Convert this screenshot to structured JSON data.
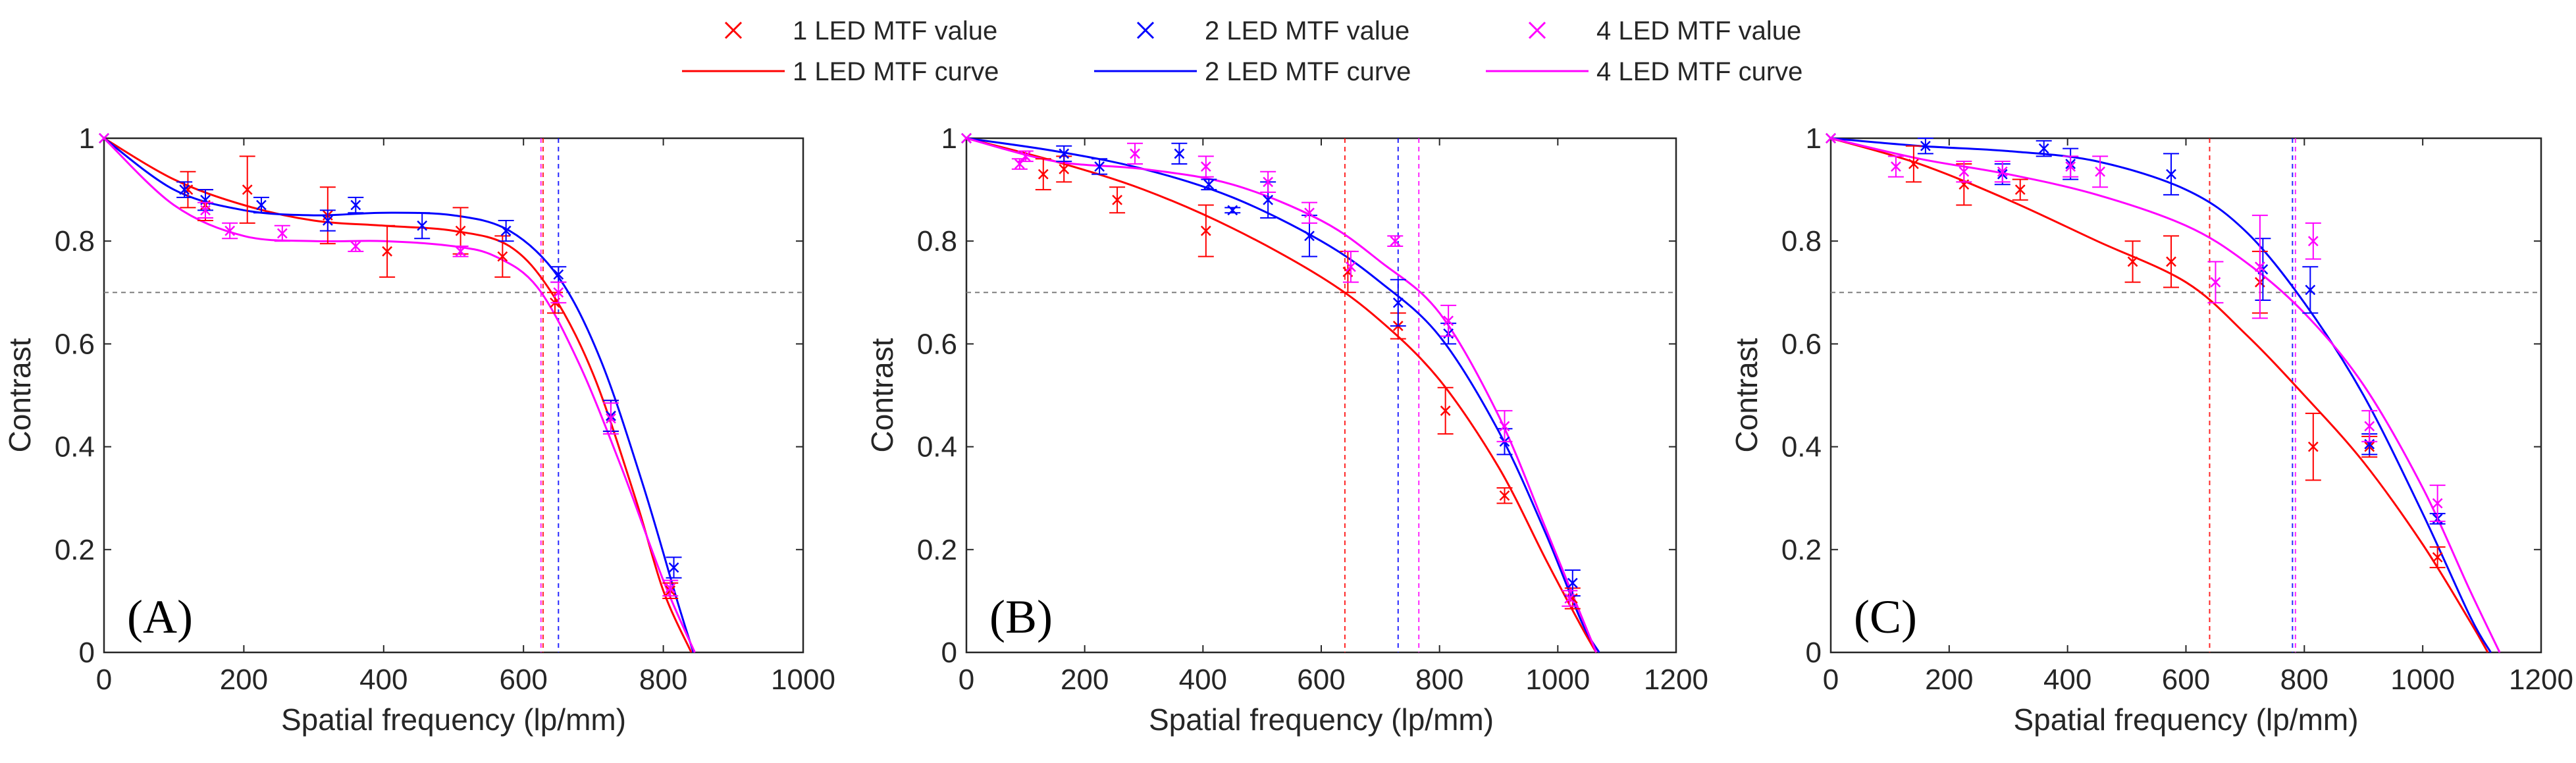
{
  "colors": {
    "led1": "#ff0000",
    "led2": "#0000ff",
    "led4": "#ff00ff",
    "threshold": "#7f7f7f",
    "axis": "#262626"
  },
  "legend": {
    "items": [
      {
        "key": "led1",
        "kind": "marker",
        "label": "1 LED MTF value"
      },
      {
        "key": "led1",
        "kind": "line",
        "label": "1 LED MTF curve"
      },
      {
        "key": "led2",
        "kind": "marker",
        "label": "2 LED MTF value"
      },
      {
        "key": "led2",
        "kind": "line",
        "label": "2 LED MTF curve"
      },
      {
        "key": "led4",
        "kind": "marker",
        "label": "4 LED MTF value"
      },
      {
        "key": "led4",
        "kind": "line",
        "label": "4 LED MTF curve"
      }
    ]
  },
  "chart_data": [
    {
      "type": "scatter",
      "panel": "(A)",
      "xlabel": "Spatial frequency (lp/mm)",
      "ylabel": "Contrast",
      "xlim": [
        0,
        1000
      ],
      "ylim": [
        0,
        1
      ],
      "xticks": [
        "0",
        "200",
        "400",
        "600",
        "800",
        "1000"
      ],
      "yticks": [
        "0",
        "0.2",
        "0.4",
        "0.6",
        "0.8",
        "1"
      ],
      "threshold": 0.7,
      "series": [
        {
          "name": "1 LED",
          "key": "led1",
          "cutoff": 628,
          "x": [
            0,
            120,
            145,
            205,
            320,
            405,
            510,
            570,
            645,
            725,
            810
          ],
          "y": [
            1,
            0.9,
            0.87,
            0.9,
            0.85,
            0.78,
            0.82,
            0.77,
            0.68,
            0.46,
            0.12
          ],
          "err": [
            0,
            0.035,
            0.03,
            0.065,
            0.055,
            0.05,
            0.045,
            0.04,
            0.02,
            0.03,
            0.015
          ],
          "curve_x": [
            0,
            100,
            200,
            300,
            400,
            500,
            580,
            640,
            700,
            760,
            800,
            840
          ],
          "curve_y": [
            1,
            0.92,
            0.87,
            0.84,
            0.83,
            0.82,
            0.79,
            0.7,
            0.54,
            0.3,
            0.12,
            0.0
          ]
        },
        {
          "name": "2 LED",
          "key": "led2",
          "cutoff": 650,
          "x": [
            0,
            115,
            145,
            225,
            320,
            360,
            455,
            575,
            650,
            725,
            815
          ],
          "y": [
            1,
            0.9,
            0.88,
            0.87,
            0.84,
            0.87,
            0.83,
            0.82,
            0.735,
            0.46,
            0.165
          ],
          "err": [
            0,
            0.015,
            0.02,
            0.015,
            0.02,
            0.015,
            0.025,
            0.02,
            0.015,
            0.03,
            0.02
          ],
          "curve_x": [
            0,
            100,
            200,
            300,
            400,
            500,
            580,
            650,
            710,
            770,
            820,
            843
          ],
          "curve_y": [
            1,
            0.9,
            0.86,
            0.85,
            0.855,
            0.85,
            0.82,
            0.73,
            0.57,
            0.33,
            0.1,
            0.0
          ]
        },
        {
          "name": "4 LED",
          "key": "led4",
          "cutoff": 625,
          "x": [
            0,
            145,
            180,
            255,
            360,
            510,
            650,
            725,
            810
          ],
          "y": [
            1,
            0.86,
            0.82,
            0.815,
            0.79,
            0.78,
            0.7,
            0.455,
            0.125
          ],
          "err": [
            0,
            0.015,
            0.015,
            0.015,
            0.01,
            0.01,
            0.02,
            0.03,
            0.015
          ],
          "curve_x": [
            0,
            100,
            200,
            300,
            400,
            500,
            560,
            620,
            680,
            740,
            800,
            845
          ],
          "curve_y": [
            1,
            0.87,
            0.81,
            0.8,
            0.8,
            0.79,
            0.77,
            0.71,
            0.56,
            0.36,
            0.14,
            0.0
          ]
        }
      ]
    },
    {
      "type": "scatter",
      "panel": "(B)",
      "xlabel": "Spatial frequency (lp/mm)",
      "ylabel": "Contrast",
      "xlim": [
        0,
        1200
      ],
      "ylim": [
        0,
        1
      ],
      "xticks": [
        "0",
        "200",
        "400",
        "600",
        "800",
        "1000",
        "1200"
      ],
      "yticks": [
        "0",
        "0.2",
        "0.4",
        "0.6",
        "0.8",
        "1"
      ],
      "threshold": 0.7,
      "series": [
        {
          "name": "1 LED",
          "key": "led1",
          "cutoff": 640,
          "x": [
            0,
            130,
            165,
            255,
            405,
            645,
            730,
            810,
            910,
            1025
          ],
          "y": [
            1,
            0.93,
            0.94,
            0.88,
            0.82,
            0.74,
            0.635,
            0.47,
            0.305,
            0.105
          ],
          "err": [
            0,
            0.03,
            0.025,
            0.025,
            0.05,
            0.04,
            0.025,
            0.045,
            0.015,
            0.02
          ],
          "curve_x": [
            0,
            150,
            300,
            450,
            600,
            700,
            800,
            900,
            980,
            1040,
            1065
          ],
          "curve_y": [
            1,
            0.955,
            0.9,
            0.825,
            0.73,
            0.645,
            0.53,
            0.36,
            0.18,
            0.05,
            0.0
          ]
        },
        {
          "name": "2 LED",
          "key": "led2",
          "cutoff": 730,
          "x": [
            0,
            165,
            225,
            360,
            410,
            450,
            510,
            580,
            730,
            815,
            910,
            1025
          ],
          "y": [
            1,
            0.97,
            0.945,
            0.97,
            0.91,
            0.86,
            0.88,
            0.81,
            0.68,
            0.62,
            0.41,
            0.135
          ],
          "err": [
            0,
            0.015,
            0.015,
            0.02,
            0.01,
            0.005,
            0.035,
            0.04,
            0.045,
            0.02,
            0.025,
            0.025
          ],
          "curve_x": [
            0,
            150,
            300,
            450,
            600,
            700,
            800,
            900,
            980,
            1040,
            1070
          ],
          "curve_y": [
            1,
            0.975,
            0.94,
            0.885,
            0.8,
            0.72,
            0.615,
            0.43,
            0.23,
            0.06,
            0.0
          ]
        },
        {
          "name": "4 LED",
          "key": "led4",
          "cutoff": 765,
          "x": [
            0,
            90,
            100,
            285,
            405,
            510,
            580,
            650,
            725,
            815,
            910,
            1020
          ],
          "y": [
            1,
            0.95,
            0.965,
            0.97,
            0.945,
            0.915,
            0.855,
            0.75,
            0.8,
            0.645,
            0.44,
            0.105
          ],
          "err": [
            0,
            0.01,
            0.01,
            0.02,
            0.02,
            0.02,
            0.02,
            0.03,
            0.01,
            0.03,
            0.03,
            0.015
          ],
          "curve_x": [
            0,
            150,
            300,
            450,
            600,
            700,
            800,
            900,
            980,
            1040,
            1065
          ],
          "curve_y": [
            1,
            0.955,
            0.94,
            0.91,
            0.84,
            0.76,
            0.66,
            0.46,
            0.24,
            0.07,
            0.0
          ]
        }
      ]
    },
    {
      "type": "scatter",
      "panel": "(C)",
      "xlabel": "Spatial frequency (lp/mm)",
      "ylabel": "Contrast",
      "xlim": [
        0,
        1200
      ],
      "ylim": [
        0,
        1
      ],
      "xticks": [
        "0",
        "200",
        "400",
        "600",
        "800",
        "1000",
        "1200"
      ],
      "yticks": [
        "0",
        "0.2",
        "0.4",
        "0.6",
        "0.8",
        "1"
      ],
      "threshold": 0.7,
      "series": [
        {
          "name": "1 LED",
          "key": "led1",
          "cutoff": 640,
          "x": [
            0,
            140,
            225,
            320,
            510,
            575,
            725,
            815,
            910,
            1025
          ],
          "y": [
            1,
            0.95,
            0.91,
            0.9,
            0.76,
            0.76,
            0.72,
            0.4,
            0.4,
            0.185
          ],
          "err": [
            0,
            0.035,
            0.04,
            0.02,
            0.04,
            0.05,
            0.06,
            0.065,
            0.02,
            0.02
          ],
          "curve_x": [
            0,
            150,
            300,
            450,
            600,
            700,
            800,
            900,
            1000,
            1080,
            1110
          ],
          "curve_y": [
            1,
            0.95,
            0.88,
            0.8,
            0.72,
            0.62,
            0.5,
            0.37,
            0.21,
            0.06,
            0.0
          ]
        },
        {
          "name": "2 LED",
          "key": "led2",
          "cutoff": 780,
          "x": [
            0,
            160,
            290,
            360,
            405,
            575,
            730,
            810,
            910,
            1025
          ],
          "y": [
            1,
            0.985,
            0.93,
            0.98,
            0.95,
            0.93,
            0.745,
            0.705,
            0.405,
            0.26
          ],
          "err": [
            0,
            0.015,
            0.02,
            0.015,
            0.03,
            0.04,
            0.06,
            0.045,
            0.02,
            0.01
          ],
          "curve_x": [
            0,
            150,
            300,
            450,
            600,
            700,
            800,
            900,
            1000,
            1080,
            1115
          ],
          "curve_y": [
            1,
            0.985,
            0.975,
            0.955,
            0.9,
            0.82,
            0.68,
            0.5,
            0.27,
            0.07,
            0.0
          ]
        },
        {
          "name": "4 LED",
          "key": "led4",
          "cutoff": 785,
          "x": [
            0,
            110,
            225,
            290,
            405,
            455,
            650,
            725,
            815,
            910,
            1025
          ],
          "y": [
            1,
            0.945,
            0.935,
            0.935,
            0.945,
            0.935,
            0.72,
            0.75,
            0.8,
            0.44,
            0.29
          ],
          "err": [
            0,
            0.02,
            0.02,
            0.02,
            0.02,
            0.03,
            0.04,
            0.1,
            0.035,
            0.03,
            0.035
          ],
          "curve_x": [
            0,
            150,
            300,
            450,
            600,
            700,
            800,
            900,
            1000,
            1080,
            1130
          ],
          "curve_y": [
            1,
            0.96,
            0.93,
            0.89,
            0.83,
            0.76,
            0.66,
            0.52,
            0.32,
            0.12,
            0.0
          ]
        }
      ]
    }
  ]
}
